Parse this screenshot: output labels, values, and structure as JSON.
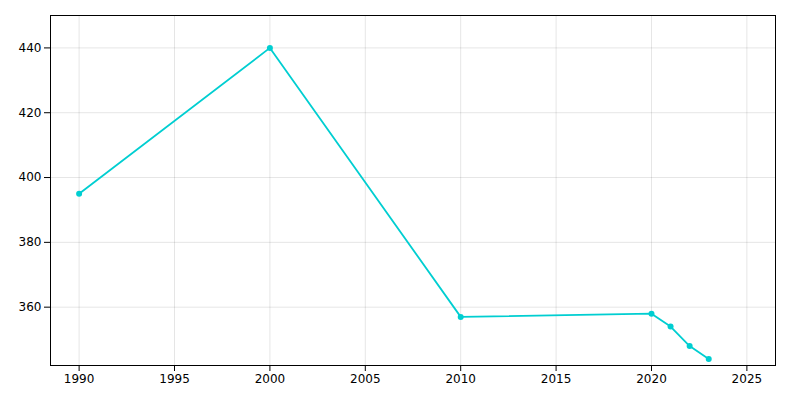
{
  "chart_data": {
    "type": "line",
    "x": [
      1990,
      2000,
      2010,
      2020,
      2021,
      2022,
      2023
    ],
    "values": [
      395,
      440,
      357,
      358,
      354,
      348,
      344
    ],
    "color": "#00CED1",
    "marker": "circle",
    "xlim": [
      1988.5,
      2026.5
    ],
    "ylim": [
      342,
      450
    ],
    "xticks": [
      1990,
      1995,
      2000,
      2005,
      2010,
      2015,
      2020,
      2025
    ],
    "yticks": [
      360,
      380,
      400,
      420,
      440
    ],
    "grid": true
  }
}
